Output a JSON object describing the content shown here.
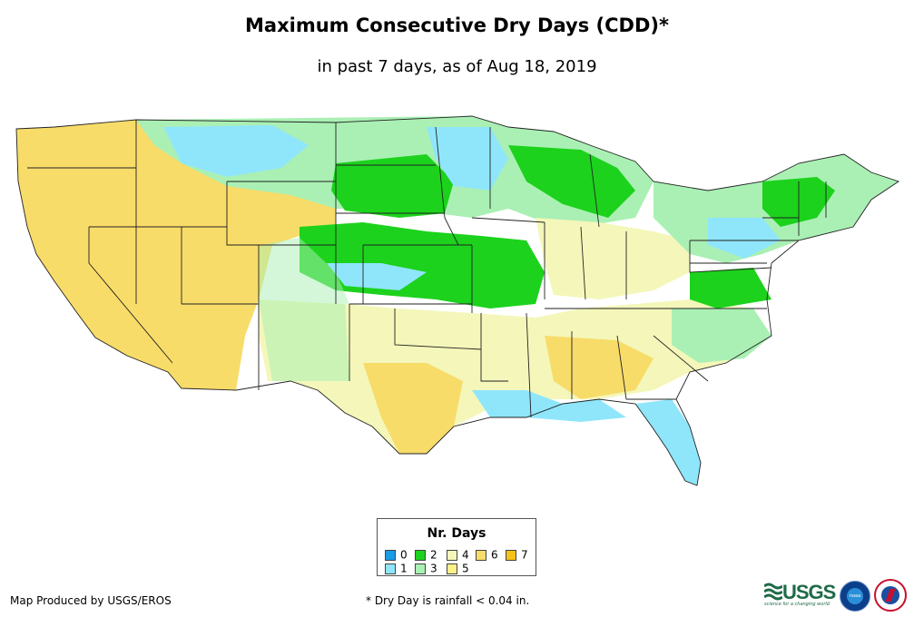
{
  "title": "Maximum Consecutive Dry Days (CDD)*",
  "subtitle": "in past 7 days, as of Aug 18, 2019",
  "legend": {
    "title": "Nr. Days",
    "items": [
      {
        "label": "0",
        "color": "#1a9be6"
      },
      {
        "label": "1",
        "color": "#8fe6fb"
      },
      {
        "label": "2",
        "color": "#1cd21c"
      },
      {
        "label": "3",
        "color": "#aaf0b4"
      },
      {
        "label": "4",
        "color": "#f4f7b9"
      },
      {
        "label": "5",
        "color": "#fbf08a"
      },
      {
        "label": "6",
        "color": "#f8dc69"
      },
      {
        "label": "7",
        "color": "#f6c21a"
      }
    ]
  },
  "footer": {
    "credit": "Map Produced by USGS/EROS",
    "note": "* Dry Day is rainfall < 0.04 in."
  },
  "logos": {
    "usgs": "USGS",
    "usgs_tagline": "science for a changing world",
    "noaa": "noaa"
  }
}
